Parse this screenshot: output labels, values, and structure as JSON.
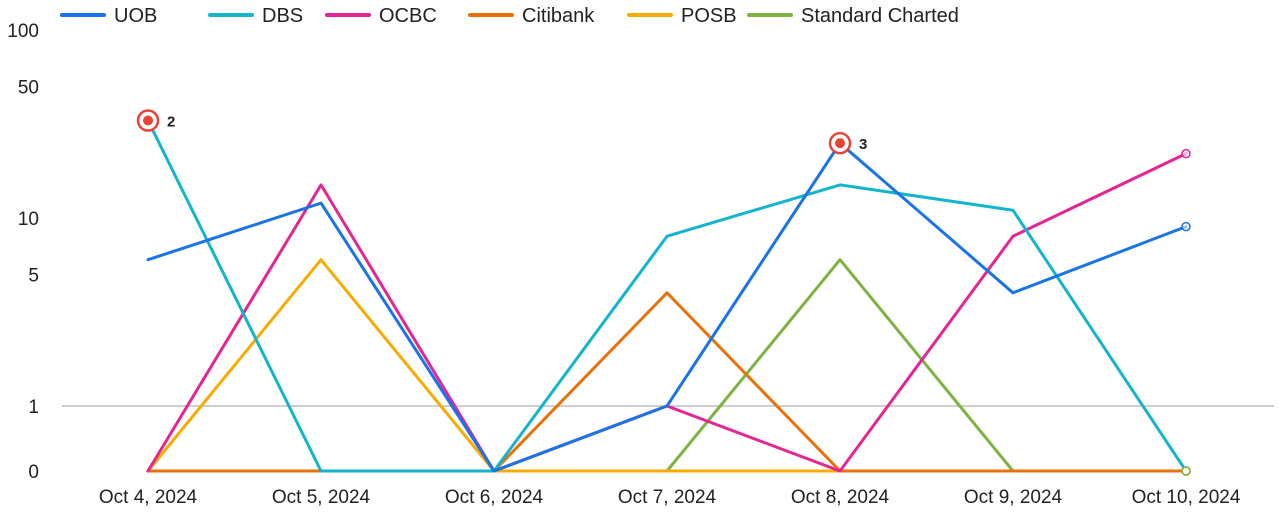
{
  "chart_data": {
    "type": "line",
    "title": "",
    "xlabel": "",
    "ylabel": "",
    "y_scale": "log",
    "y_ticks": [
      0,
      1,
      5,
      10,
      50,
      100
    ],
    "y_tick_labels": [
      "0",
      "1",
      "5",
      "10",
      "50",
      "100"
    ],
    "ylim": [
      0,
      100
    ],
    "reference_line": 1,
    "legend_position": "top-left",
    "categories": [
      "Oct 4, 2024",
      "Oct 5, 2024",
      "Oct 6, 2024",
      "Oct 7, 2024",
      "Oct 8, 2024",
      "Oct 9, 2024",
      "Oct 10, 2024"
    ],
    "series": [
      {
        "name": "UOB",
        "color": "#1a73e8",
        "values": [
          6,
          12,
          0,
          1,
          25,
          4,
          9
        ]
      },
      {
        "name": "DBS",
        "color": "#12b5cb",
        "values": [
          33,
          0,
          0,
          8,
          15,
          11,
          0
        ]
      },
      {
        "name": "OCBC",
        "color": "#e52592",
        "values": [
          0,
          15,
          0,
          1,
          0,
          8,
          22
        ]
      },
      {
        "name": "Citibank",
        "color": "#e8710a",
        "values": [
          0,
          0,
          0,
          4,
          0,
          0,
          0
        ]
      },
      {
        "name": "POSB",
        "color": "#f9ab00",
        "values": [
          0,
          6,
          0,
          0,
          0,
          0,
          0
        ]
      },
      {
        "name": "Standard Charted",
        "color": "#7cb342",
        "values": [
          0,
          0,
          0,
          0,
          6,
          0,
          0
        ]
      }
    ],
    "annotations": [
      {
        "series": "DBS",
        "category": "Oct 4, 2024",
        "label": "2"
      },
      {
        "series": "UOB",
        "category": "Oct 8, 2024",
        "label": "3"
      }
    ]
  }
}
